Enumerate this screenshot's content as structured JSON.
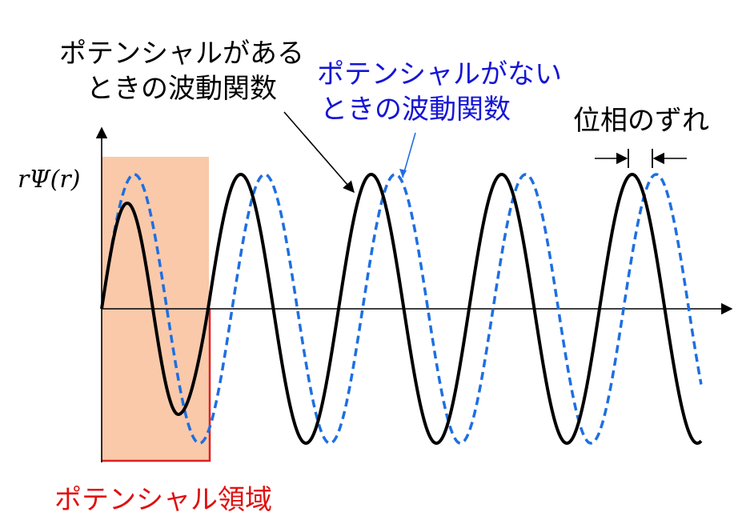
{
  "labels": {
    "with_potential_line1": "ポテンシャルがある",
    "with_potential_line2": "ときの波動関数",
    "without_potential_line1": "ポテンシャルがない",
    "without_potential_line2": "ときの波動関数",
    "phase_shift": "位相のずれ",
    "y_axis": "rΨ(r)",
    "potential_region": "ポテンシャル領域"
  },
  "colors": {
    "with_potential": "#000000",
    "without_potential": "#1e6fe0",
    "without_potential_text": "#1515d6",
    "potential_region_fill": "#f9c9aa",
    "potential_region_edge": "#e02020",
    "potential_region_text": "#e01010"
  }
}
